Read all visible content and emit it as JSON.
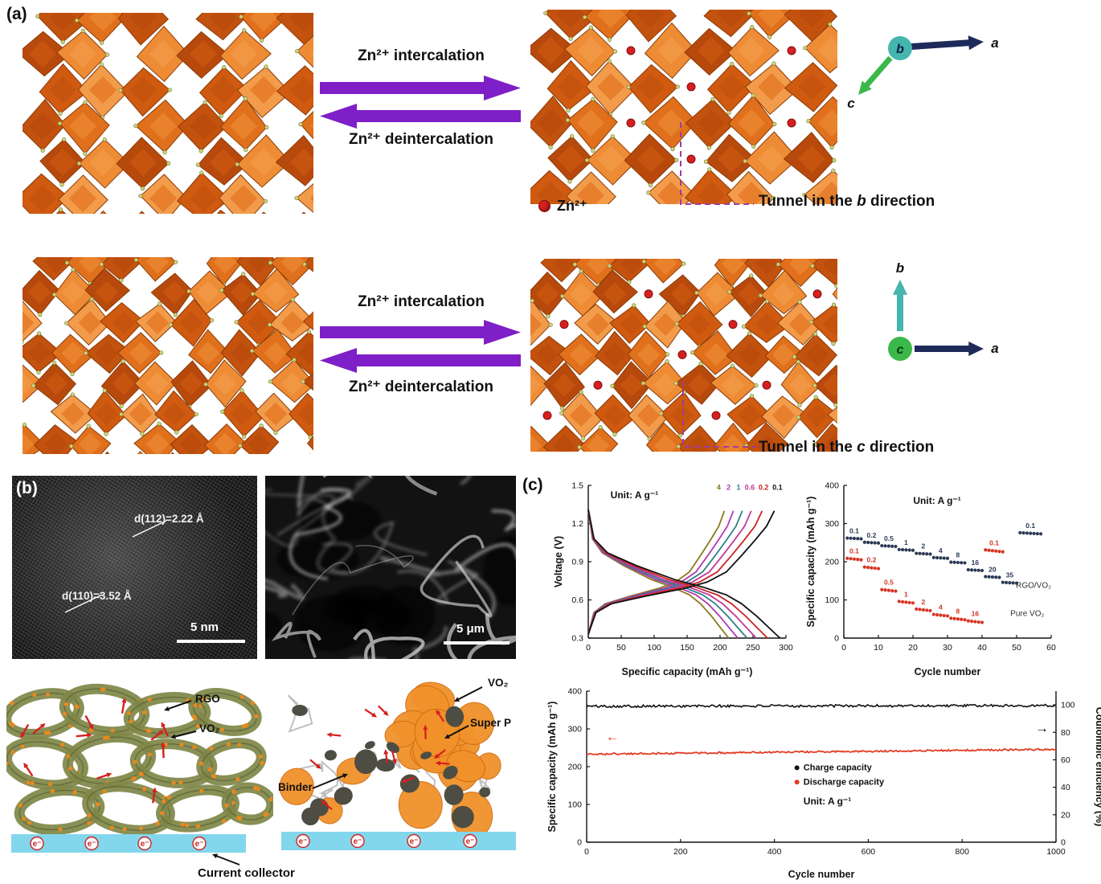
{
  "figure": {
    "panel_a_label": "(a)",
    "panel_b_label": "(b)",
    "panel_c_label": "(c)"
  },
  "panel_a": {
    "rows": [
      {
        "intercalation": "Zn²⁺ intercalation",
        "deintercalation": "Zn²⁺ deintercalation",
        "tunnel_prefix": "Tunnel in the ",
        "tunnel_axis": "b",
        "tunnel_suffix": " direction",
        "axis_labels": {
          "a": "a",
          "b": "b",
          "c": "c"
        }
      },
      {
        "intercalation": "Zn²⁺ intercalation",
        "deintercalation": "Zn²⁺ deintercalation",
        "tunnel_prefix": "Tunnel in the ",
        "tunnel_axis": "c",
        "tunnel_suffix": " direction",
        "axis_labels": {
          "a": "a",
          "b": "b",
          "c": "c"
        }
      }
    ],
    "zn_legend": "Zn²⁺",
    "colors": {
      "arrow": "#7e1fc7",
      "dashed": "#a23aa0",
      "zn_ion": "#d81f1f",
      "axis_a": "#1e2b5a",
      "axis_b": "#45b5ae",
      "axis_c": "#3cb84a",
      "palette": [
        "#e0701c",
        "#cf5a10",
        "#ee8c36",
        "#c3520e",
        "#f29b4a",
        "#b8490c"
      ]
    }
  },
  "panel_b": {
    "tem": {
      "d1": "d(112)=2.22 Å",
      "d2": "d(110)=3.52 Å",
      "scale": "5 nm"
    },
    "sem": {
      "scale": "5 μm"
    },
    "schematic_left": {
      "labels": [
        "RGO",
        "VO₂"
      ],
      "electron": "e⁻"
    },
    "schematic_right": {
      "labels": [
        "VO₂",
        "Super P",
        "Binder"
      ],
      "electron": "e⁻"
    },
    "current_collector": "Current collector"
  },
  "chart_data": [
    {
      "type": "line",
      "name": "galvanostatic-charge-discharge",
      "xlabel": "Specific capacity (mAh g⁻¹)",
      "ylabel": "Voltage (V)",
      "xlim": [
        0,
        300
      ],
      "ylim": [
        0.3,
        1.5
      ],
      "xticks": [
        0,
        50,
        100,
        150,
        200,
        250,
        300
      ],
      "yticks": [
        0.3,
        0.6,
        0.9,
        1.2,
        1.5
      ],
      "spines": "lb",
      "margins": {
        "l": 46,
        "r": 10,
        "t": 10,
        "b": 52
      },
      "series": [
        {
          "kind": "gcd",
          "rate": "4",
          "capacity": 213,
          "color": "#8a7a1e"
        },
        {
          "kind": "gcd",
          "rate": "2",
          "capacity": 227,
          "color": "#b03ab0"
        },
        {
          "kind": "gcd",
          "rate": "1",
          "capacity": 241,
          "color": "#2e7f8a"
        },
        {
          "kind": "gcd",
          "rate": "0.6",
          "capacity": 255,
          "color": "#c2379c"
        },
        {
          "kind": "gcd",
          "rate": "0.2",
          "capacity": 272,
          "color": "#cc2222"
        },
        {
          "kind": "gcd",
          "rate": "0.1",
          "capacity": 291,
          "color": "#111111"
        }
      ],
      "annotations": [
        {
          "text": "Unit: A g⁻¹",
          "x": 70,
          "y": 1.4,
          "size": 12,
          "weight": "bold",
          "color": "#111111"
        },
        {
          "text": "4",
          "x": 198,
          "y": 1.465,
          "size": 9,
          "color": "#8a7a1e"
        },
        {
          "text": "2",
          "x": 213,
          "y": 1.465,
          "size": 9,
          "color": "#b03ab0"
        },
        {
          "text": "1",
          "x": 228,
          "y": 1.465,
          "size": 9,
          "color": "#2e7f8a"
        },
        {
          "text": "0.6",
          "x": 245,
          "y": 1.465,
          "size": 9,
          "color": "#c2379c"
        },
        {
          "text": "0.2",
          "x": 266,
          "y": 1.465,
          "size": 9,
          "color": "#cc2222"
        },
        {
          "text": "0.1",
          "x": 287,
          "y": 1.465,
          "size": 9,
          "color": "#111111"
        }
      ]
    },
    {
      "type": "scatter",
      "name": "rate-capability",
      "xlabel": "Cycle number",
      "ylabel": "Specific capacity (mAh g⁻¹)",
      "xlim": [
        0,
        60
      ],
      "ylim": [
        0,
        400
      ],
      "xticks": [
        0,
        10,
        20,
        30,
        40,
        50,
        60
      ],
      "yticks": [
        0,
        100,
        200,
        300,
        400
      ],
      "spines": "lb",
      "margins": {
        "l": 50,
        "r": 62,
        "t": 10,
        "b": 52
      },
      "series": [
        {
          "kind": "steps",
          "name": "RGO/VO₂",
          "color": "#2b3a55",
          "step_len": 5,
          "start": 1,
          "fade": 0.5,
          "steps": [
            {
              "rate": "0.1",
              "value": 262
            },
            {
              "rate": "0.2",
              "value": 251
            },
            {
              "rate": "0.5",
              "value": 242
            },
            {
              "rate": "1",
              "value": 232
            },
            {
              "rate": "2",
              "value": 222
            },
            {
              "rate": "4",
              "value": 211
            },
            {
              "rate": "8",
              "value": 199
            },
            {
              "rate": "16",
              "value": 179
            },
            {
              "rate": "20",
              "value": 161
            },
            {
              "rate": "35",
              "value": 146
            },
            {
              "rate": "0.1",
              "value": 276,
              "n": 7
            }
          ]
        },
        {
          "kind": "steps",
          "name": "Pure VO₂",
          "color": "#d63425",
          "step_len": 5,
          "start": 1,
          "fade": 1.0,
          "steps": [
            {
              "rate": "0.1",
              "value": 209
            },
            {
              "rate": "0.2",
              "value": 186
            },
            {
              "rate": "0.5",
              "value": 127
            },
            {
              "rate": "1",
              "value": 96
            },
            {
              "rate": "2",
              "value": 76
            },
            {
              "rate": "4",
              "value": 62
            },
            {
              "rate": "8",
              "value": 52
            },
            {
              "rate": "16",
              "value": 45
            },
            {
              "rate": "0.1",
              "value": 231,
              "n": 6
            }
          ]
        }
      ],
      "annotations": [
        {
          "text": "Unit: A g⁻¹",
          "x": 27,
          "y": 352,
          "size": 12,
          "weight": "bold",
          "color": "#111111"
        },
        {
          "text": "RGO/VO₂",
          "x": 60,
          "y": 132,
          "anchor": "end",
          "size": 10,
          "weight": "normal",
          "color": "#333333"
        },
        {
          "text": "Pure VO₂",
          "x": 58,
          "y": 58,
          "anchor": "end",
          "size": 10,
          "weight": "normal",
          "color": "#333333"
        }
      ]
    },
    {
      "type": "line",
      "name": "long-term-cycling",
      "xlabel": "Cycle number",
      "ylabel": "Specific capacity (mAh g⁻¹)",
      "y2label": "Coulombic efficiency (%)",
      "xlim": [
        0,
        1000
      ],
      "ylim": [
        0,
        400
      ],
      "y2lim": [
        0,
        110
      ],
      "xticks": [
        0,
        200,
        400,
        600,
        800,
        1000
      ],
      "yticks": [
        0,
        100,
        200,
        300,
        400
      ],
      "y2ticks": [
        0,
        20,
        40,
        60,
        80,
        100
      ],
      "spines": "lbr",
      "margins": {
        "l": 52,
        "r": 56,
        "t": 10,
        "b": 50
      },
      "series": [
        {
          "kind": "noisy",
          "name": "Coulombic efficiency",
          "color": "#111111",
          "start": 99.0,
          "end": 99.5,
          "noise": 0.9,
          "n": 350,
          "axis": "y2",
          "width": 1.6
        },
        {
          "kind": "noisy",
          "name": "Discharge capacity",
          "color": "#e23b24",
          "start": 233,
          "end": 246,
          "noise": 2.2,
          "n": 350,
          "axis": "y",
          "width": 1.8
        }
      ],
      "annotations": [
        {
          "type": "dot",
          "x": 448,
          "y": 197,
          "color": "#111111",
          "r": 3
        },
        {
          "text": "Charge capacity",
          "x": 462,
          "y": 190,
          "anchor": "start",
          "size": 11,
          "weight": "bold",
          "color": "#111111"
        },
        {
          "type": "dot",
          "x": 448,
          "y": 159,
          "color": "#e23b24",
          "r": 3
        },
        {
          "text": "Discharge capacity",
          "x": 462,
          "y": 152,
          "anchor": "start",
          "size": 11,
          "weight": "bold",
          "color": "#111111"
        },
        {
          "text": "Unit: A g⁻¹",
          "x": 462,
          "y": 100,
          "anchor": "start",
          "size": 12,
          "weight": "bold",
          "color": "#111111"
        },
        {
          "text": "←",
          "x": 55,
          "y": 268,
          "size": 17,
          "weight": "bold",
          "color": "#e23b24"
        },
        {
          "text": "→",
          "x": 970,
          "y": 80,
          "axis": "y2",
          "size": 17,
          "weight": "bold",
          "color": "#111111"
        }
      ]
    }
  ]
}
